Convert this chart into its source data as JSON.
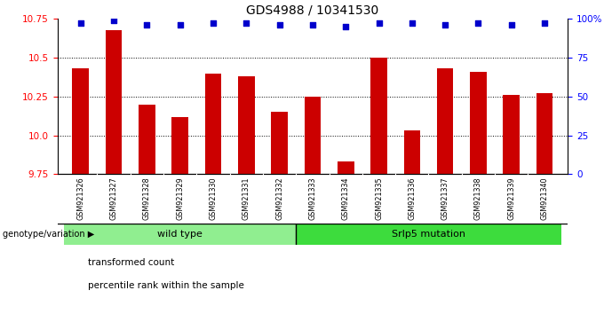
{
  "title": "GDS4988 / 10341530",
  "samples": [
    "GSM921326",
    "GSM921327",
    "GSM921328",
    "GSM921329",
    "GSM921330",
    "GSM921331",
    "GSM921332",
    "GSM921333",
    "GSM921334",
    "GSM921335",
    "GSM921336",
    "GSM921337",
    "GSM921338",
    "GSM921339",
    "GSM921340"
  ],
  "transformed_counts": [
    10.43,
    10.68,
    10.2,
    10.12,
    10.4,
    10.38,
    10.15,
    10.25,
    9.83,
    10.5,
    10.03,
    10.43,
    10.41,
    10.26,
    10.27
  ],
  "percentile_ranks": [
    97,
    99,
    96,
    96,
    97,
    97,
    96,
    96,
    95,
    97,
    97,
    96,
    97,
    96,
    97
  ],
  "ylim_left": [
    9.75,
    10.75
  ],
  "ylim_right": [
    0,
    100
  ],
  "yticks_left": [
    9.75,
    10.0,
    10.25,
    10.5,
    10.75
  ],
  "yticks_right": [
    0,
    25,
    50,
    75,
    100
  ],
  "ytick_labels_right": [
    "0",
    "25",
    "50",
    "75",
    "100%"
  ],
  "bar_color": "#cc0000",
  "dot_color": "#0000cc",
  "n_wild": 7,
  "n_mut": 8,
  "wild_type_label": "wild type",
  "mutation_label": "Srlp5 mutation",
  "genotype_label": "genotype/variation",
  "legend_bar_label": "transformed count",
  "legend_dot_label": "percentile rank within the sample",
  "bg_color": "#c8c8c8",
  "group_bg_wild": "#90ee90",
  "group_bg_mutation": "#3ddc3d",
  "title_fontsize": 10,
  "tick_fontsize": 7.5
}
